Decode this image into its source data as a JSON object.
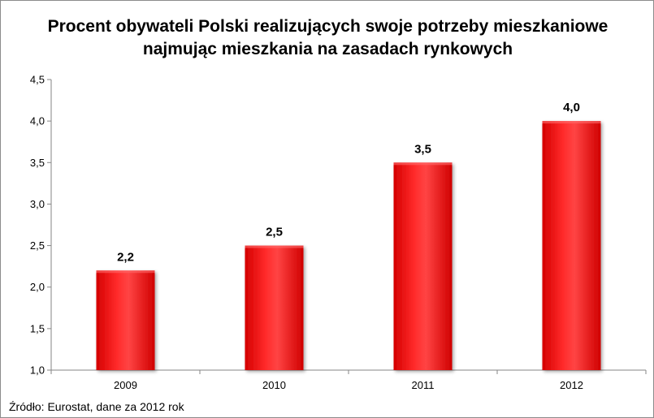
{
  "chart_data": {
    "type": "bar",
    "title_lines": [
      "Procent obywateli Polski realizujących swoje potrzeby mieszkaniowe",
      "najmując mieszkania na zasadach rynkowych"
    ],
    "categories": [
      "2009",
      "2010",
      "2011",
      "2012"
    ],
    "values": [
      2.2,
      2.5,
      3.5,
      4.0
    ],
    "value_labels": [
      "2,2",
      "2,5",
      "3,5",
      "4,0"
    ],
    "ylim": [
      1.0,
      4.5
    ],
    "yticks": [
      1.0,
      1.5,
      2.0,
      2.5,
      3.0,
      3.5,
      4.0,
      4.5
    ],
    "ytick_labels": [
      "1,0",
      "1,5",
      "2,0",
      "2,5",
      "3,0",
      "3,5",
      "4,0",
      "4,5"
    ],
    "xlabel": "",
    "ylabel": "",
    "grid": false,
    "legend": "none",
    "bar_color": "#ff0000",
    "bar_highlight_color": "#ff6b6b",
    "bar_shadow_color": "#d40000"
  },
  "source_note": "Źródło: Eurostat, dane za 2012 rok"
}
